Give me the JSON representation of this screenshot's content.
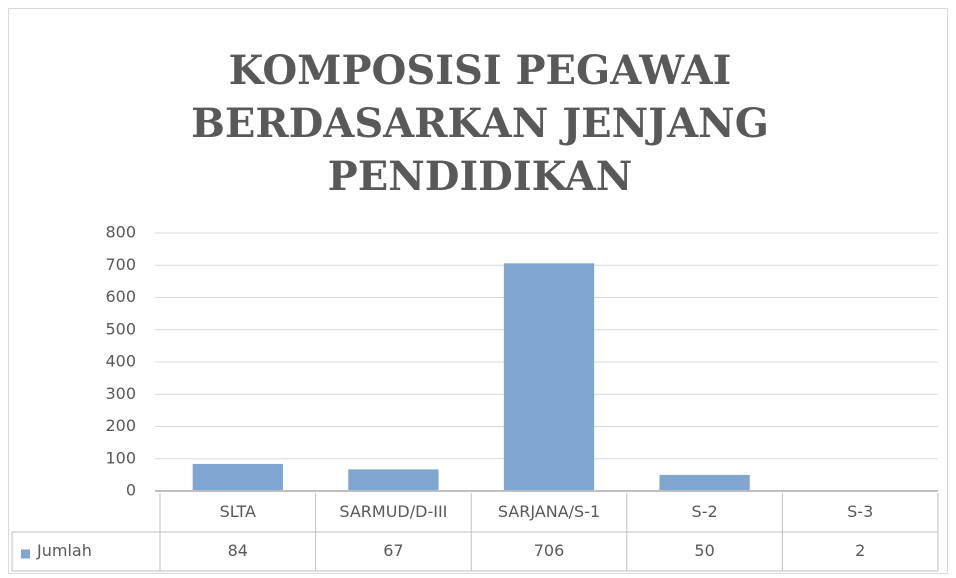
{
  "chart_data": {
    "type": "bar",
    "title": "KOMPOSISI PEGAWAI BERDASARKAN JENJANG PENDIDIKAN",
    "categories": [
      "SLTA",
      "SARMUD/D-III",
      "SARJANA/S-1",
      "S-2",
      "S-3"
    ],
    "series": [
      {
        "name": "Jumlah",
        "color": "#7fa5d1",
        "values": [
          84,
          67,
          706,
          50,
          2
        ]
      }
    ],
    "ylim": [
      0,
      800
    ],
    "yticks": [
      0,
      100,
      200,
      300,
      400,
      500,
      600,
      700,
      800
    ],
    "grid": true,
    "legend": "data-table"
  }
}
